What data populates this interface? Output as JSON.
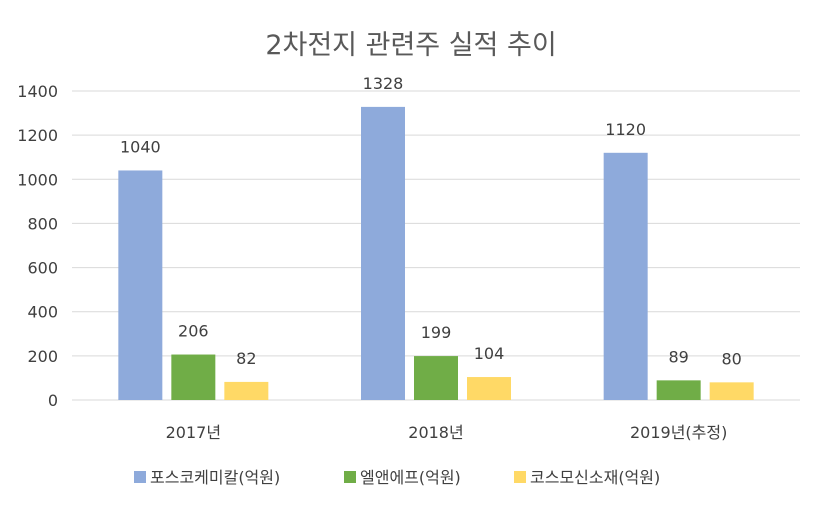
{
  "chart_data": {
    "type": "bar",
    "title": "2차전지 관련주 실적 추이",
    "xlabel": "",
    "ylabel": "",
    "categories": [
      "2017년",
      "2018년",
      "2019년(추정)"
    ],
    "series": [
      {
        "name": "포스코케미칼(억원)",
        "color": "#8eaadb",
        "values": [
          1040,
          1328,
          1120
        ]
      },
      {
        "name": "엘앤에프(억원)",
        "color": "#70ad47",
        "values": [
          206,
          199,
          89
        ]
      },
      {
        "name": "코스모신소재(억원)",
        "color": "#ffd966",
        "values": [
          82,
          104,
          80
        ]
      }
    ],
    "ylim": [
      0,
      1400
    ],
    "yticks": [
      0,
      200,
      400,
      600,
      800,
      1000,
      1200,
      1400
    ],
    "grid": true,
    "legend_position": "bottom",
    "axis_color": "#d9d9d9"
  }
}
